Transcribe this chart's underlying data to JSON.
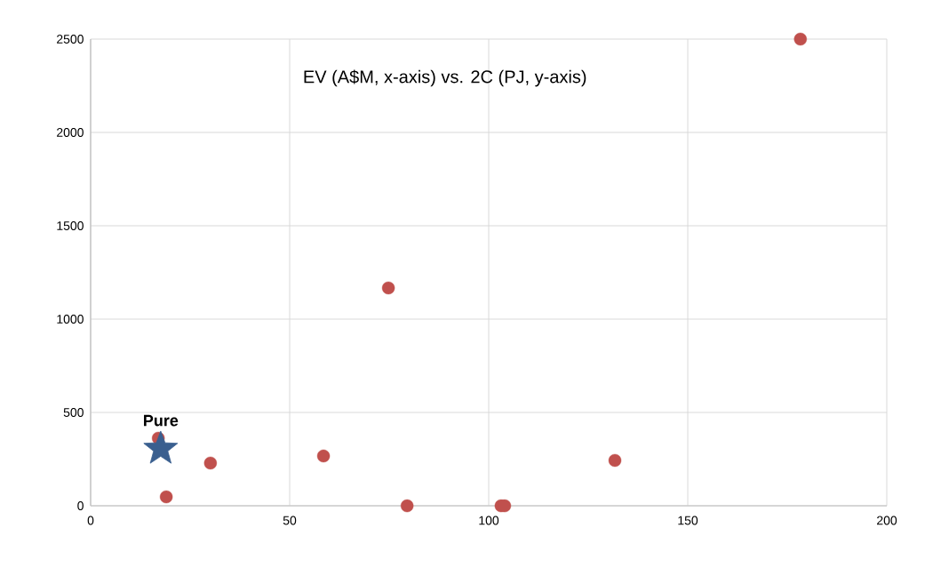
{
  "chart_data": {
    "type": "scatter",
    "title": "EV (A$M, x-axis) vs. 2C (PJ, y-axis)",
    "xlim": [
      0,
      200
    ],
    "xticks": [
      0,
      50,
      100,
      150,
      200
    ],
    "ylim": [
      0,
      2500
    ],
    "yticks": [
      0,
      500,
      1000,
      1500,
      2000,
      2500
    ],
    "grid": true,
    "series": [
      {
        "color": "#c0504d",
        "marker": "circle",
        "x": [
          178.3,
          74.8,
          58.5,
          30.1,
          19.0,
          17.0,
          79.5,
          103.1,
          104.0,
          131.7
        ],
        "values": [
          2500,
          1167,
          267,
          229,
          48,
          362,
          0,
          0,
          0,
          243
        ]
      },
      {
        "name": "Pure",
        "color": "#3a5f8f",
        "marker": "star",
        "x": [
          17.6
        ],
        "values": [
          305
        ]
      }
    ]
  }
}
